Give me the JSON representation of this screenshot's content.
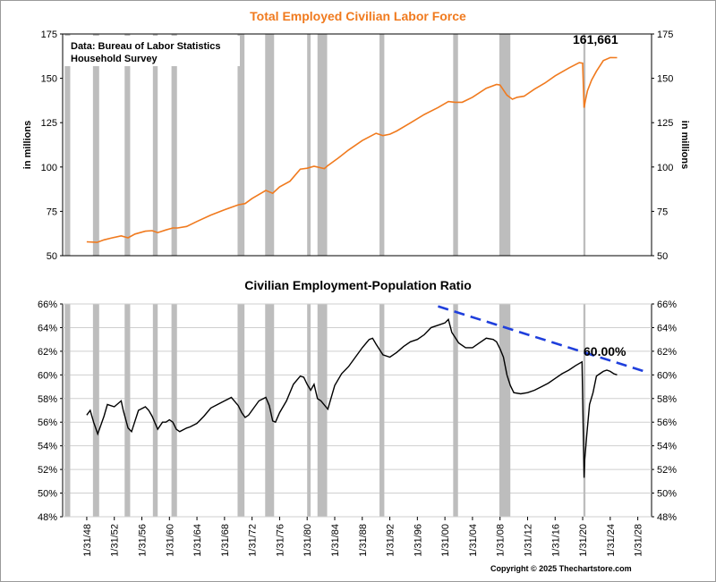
{
  "colors": {
    "labor_force_line": "#f07a1e",
    "ratio_line": "#000000",
    "trend_line": "#1f3fdc",
    "recession_shading": "#bdbdbd",
    "top_title": "#f07a1e"
  },
  "copyright": "Copyright © 2025 Thechartstore.com",
  "x_axis": {
    "tick_labels": [
      "1/31/48",
      "1/31/52",
      "1/31/56",
      "1/31/60",
      "1/31/64",
      "1/31/68",
      "1/31/72",
      "1/31/76",
      "1/31/80",
      "1/31/84",
      "1/31/88",
      "1/31/92",
      "1/31/96",
      "1/31/00",
      "1/31/04",
      "1/31/08",
      "1/31/12",
      "1/31/16",
      "1/31/20",
      "1/31/24",
      "1/31/28"
    ],
    "range": [
      1944.5,
      2030
    ],
    "recessions": [
      [
        1948.9,
        1949.8
      ],
      [
        1953.5,
        1954.3
      ],
      [
        1957.6,
        1958.3
      ],
      [
        1960.3,
        1961.1
      ],
      [
        1969.9,
        1970.9
      ],
      [
        1973.9,
        1975.2
      ],
      [
        1980.0,
        1980.5
      ],
      [
        1981.5,
        1982.9
      ],
      [
        1990.5,
        1991.2
      ],
      [
        2001.2,
        2001.9
      ],
      [
        2007.9,
        2009.5
      ],
      [
        2020.1,
        2020.4
      ]
    ],
    "left_band": [
      1944.8,
      1945.6
    ]
  },
  "chart_data": [
    {
      "type": "line",
      "title": "Total Employed Civilian Labor Force",
      "source_lines": [
        "Data:  Bureau of Labor Statistics",
        "Household Survey"
      ],
      "ylabel": "in millions",
      "ylim": [
        50,
        175
      ],
      "y_ticks": [
        "50",
        "75",
        "100",
        "125",
        "150",
        "175"
      ],
      "grid": false,
      "annotation": "161,661",
      "series": [
        {
          "x": [
            1948.0,
            1949.5,
            1950.5,
            1951.5,
            1953.0,
            1954.0,
            1955.0,
            1956.5,
            1957.5,
            1958.3,
            1959.5,
            1960.5,
            1961.2,
            1962.5,
            1964.0,
            1966.0,
            1968.0,
            1970.0,
            1971.0,
            1972.0,
            1974.0,
            1975.0,
            1976.0,
            1977.5,
            1979.0,
            1980.0,
            1981.0,
            1982.5,
            1983.0,
            1984.5,
            1986.0,
            1988.0,
            1990.0,
            1991.0,
            1992.0,
            1993.0,
            1995.0,
            1997.0,
            1999.0,
            2000.5,
            2001.5,
            2002.5,
            2004.0,
            2006.0,
            2007.5,
            2008.0,
            2009.0,
            2009.8,
            2010.5,
            2011.5,
            2013.0,
            2014.5,
            2016.0,
            2018.0,
            2019.5,
            2020.0,
            2020.2,
            2020.4,
            2020.7,
            2021.3,
            2022.0,
            2023.0,
            2024.0,
            2025.0
          ],
          "values": [
            57.8,
            57.5,
            58.9,
            59.9,
            61.2,
            60.1,
            62.2,
            63.8,
            64.1,
            63.0,
            64.5,
            65.6,
            65.6,
            66.5,
            69.3,
            72.9,
            75.9,
            78.7,
            79.4,
            82.2,
            86.8,
            85.2,
            88.8,
            92.0,
            98.8,
            99.3,
            100.4,
            99.1,
            100.8,
            105.0,
            109.6,
            114.9,
            119.0,
            117.7,
            118.5,
            120.3,
            124.9,
            129.6,
            133.5,
            136.9,
            136.5,
            136.5,
            139.3,
            144.4,
            146.5,
            146.2,
            140.5,
            138.2,
            139.3,
            139.9,
            143.9,
            147.3,
            151.4,
            155.8,
            158.8,
            158.5,
            133.4,
            137.6,
            143.0,
            149.0,
            154.0,
            160.0,
            161.7,
            161.661
          ]
        }
      ]
    },
    {
      "type": "line",
      "title": "Civilian Employment-Population Ratio",
      "ylabel": "",
      "ylim": [
        48,
        66
      ],
      "y_ticks": [
        "48%",
        "50%",
        "52%",
        "54%",
        "56%",
        "58%",
        "60%",
        "62%",
        "64%",
        "66%"
      ],
      "grid": true,
      "annotation": "60.00%",
      "trend_line": {
        "x": [
          1999.0,
          2029.5
        ],
        "values": [
          65.8,
          60.2
        ]
      },
      "series": [
        {
          "x": [
            1948.0,
            1948.5,
            1949.0,
            1949.6,
            1950.5,
            1951.0,
            1952.0,
            1953.0,
            1953.3,
            1954.0,
            1954.5,
            1955.5,
            1956.5,
            1957.0,
            1957.5,
            1958.3,
            1959.0,
            1959.5,
            1960.0,
            1960.5,
            1961.0,
            1961.5,
            1962.5,
            1963.0,
            1964.0,
            1965.0,
            1966.0,
            1967.0,
            1968.0,
            1969.0,
            1970.0,
            1970.5,
            1971.0,
            1971.5,
            1972.0,
            1973.0,
            1974.0,
            1974.5,
            1975.0,
            1975.4,
            1976.0,
            1977.0,
            1978.0,
            1979.0,
            1979.5,
            1980.0,
            1980.5,
            1981.0,
            1981.5,
            1982.0,
            1983.0,
            1984.0,
            1985.0,
            1986.0,
            1987.0,
            1988.0,
            1989.0,
            1989.5,
            1990.0,
            1991.0,
            1992.0,
            1993.0,
            1994.0,
            1995.0,
            1996.0,
            1997.0,
            1998.0,
            1999.0,
            2000.0,
            2000.5,
            2001.0,
            2002.0,
            2003.0,
            2004.0,
            2005.0,
            2006.0,
            2007.0,
            2007.5,
            2008.0,
            2008.5,
            2009.0,
            2009.5,
            2010.0,
            2011.0,
            2012.0,
            2013.0,
            2014.0,
            2015.0,
            2016.0,
            2017.0,
            2018.0,
            2019.0,
            2019.9,
            2020.2,
            2020.3,
            2020.6,
            2021.0,
            2021.5,
            2022.0,
            2022.5,
            2023.0,
            2023.5,
            2024.0,
            2024.5,
            2025.0
          ],
          "values": [
            56.6,
            57.0,
            56.0,
            55.0,
            56.5,
            57.5,
            57.3,
            57.8,
            57.0,
            55.5,
            55.2,
            57.0,
            57.3,
            57.0,
            56.5,
            55.4,
            56.0,
            56.0,
            56.2,
            56.0,
            55.4,
            55.2,
            55.5,
            55.6,
            55.9,
            56.5,
            57.2,
            57.5,
            57.8,
            58.1,
            57.4,
            56.8,
            56.4,
            56.6,
            57.0,
            57.8,
            58.1,
            57.4,
            56.1,
            56.0,
            56.8,
            57.8,
            59.2,
            59.9,
            59.8,
            59.2,
            58.7,
            59.2,
            58.0,
            57.8,
            57.1,
            59.1,
            60.1,
            60.7,
            61.5,
            62.3,
            63.0,
            63.1,
            62.6,
            61.7,
            61.5,
            61.9,
            62.4,
            62.8,
            63.0,
            63.4,
            64.0,
            64.2,
            64.4,
            64.7,
            63.6,
            62.7,
            62.3,
            62.3,
            62.7,
            63.1,
            63.0,
            62.8,
            62.2,
            61.5,
            60.0,
            59.1,
            58.5,
            58.4,
            58.5,
            58.7,
            59.0,
            59.3,
            59.7,
            60.1,
            60.4,
            60.8,
            61.1,
            51.3,
            52.8,
            55.0,
            57.5,
            58.5,
            59.9,
            60.1,
            60.3,
            60.4,
            60.3,
            60.1,
            60.0
          ]
        }
      ]
    }
  ]
}
